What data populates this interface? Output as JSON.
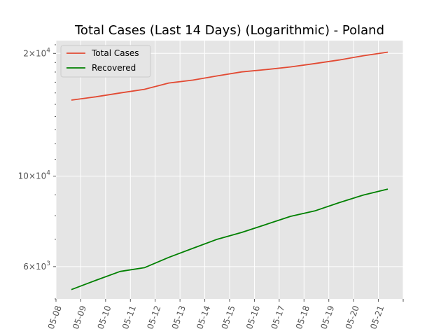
{
  "chart_data": {
    "type": "line",
    "title": "Total Cases (Last 14 Days) (Logarithmic) - Poland",
    "xlabel": "",
    "ylabel": "",
    "yscale": "log",
    "ylim": [
      5000,
      21500
    ],
    "categories": [
      "05-08",
      "05-09",
      "05-10",
      "05-11",
      "05-12",
      "05-13",
      "05-14",
      "05-15",
      "05-16",
      "05-17",
      "05-18",
      "05-19",
      "05-20",
      "05-21"
    ],
    "y_tick_labels": [
      {
        "value": 6000,
        "mantissa": "6",
        "exponent": "3"
      },
      {
        "value": 10000,
        "mantissa": "10",
        "exponent": "4"
      },
      {
        "value": 20000,
        "mantissa": "2",
        "exponent": "4"
      }
    ],
    "times_sign": "×",
    "series": [
      {
        "name": "Total Cases",
        "color": "#e24a33",
        "values": [
          15366,
          15651,
          15996,
          16326,
          16921,
          17204,
          17615,
          18016,
          18257,
          18529,
          18885,
          19268,
          19739,
          20143
        ]
      },
      {
        "name": "Recovered",
        "color": "#008000",
        "values": [
          5270,
          5552,
          5837,
          5965,
          6322,
          6657,
          7005,
          7279,
          7614,
          7968,
          8218,
          8610,
          8990,
          9297
        ]
      }
    ],
    "grid": true,
    "legend_position": "top-left",
    "background": "#e5e5e5"
  }
}
